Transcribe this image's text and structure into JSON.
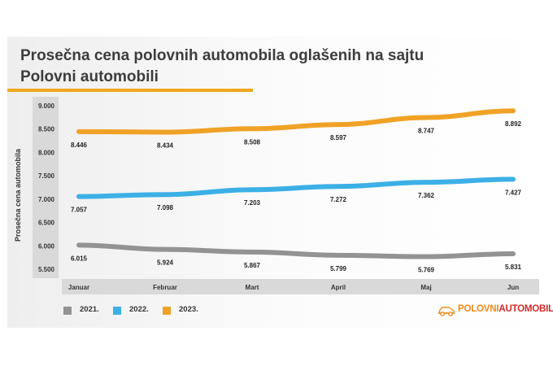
{
  "title": {
    "line1": "Prosečna cena polovnih automobila oglašenih na sajtu",
    "line2": "Polovni automobili"
  },
  "logo": {
    "part1": "POLOVNI",
    "part2": "AUTOMOBILI",
    "icon": "car-icon"
  },
  "chart_data": {
    "type": "line",
    "categories": [
      "Januar",
      "Februar",
      "Mart",
      "April",
      "Maj",
      "Jun"
    ],
    "ylabel": "Prosečna cena automobila",
    "ylim": [
      5500,
      9000
    ],
    "yticks": [
      9000,
      8500,
      8000,
      7500,
      7000,
      6500,
      6000,
      5500
    ],
    "ytick_labels": [
      "9.000",
      "8.500",
      "8.000",
      "7.500",
      "7.000",
      "6.500",
      "6.000",
      "5.500"
    ],
    "grid": false,
    "legend_position": "bottom-left",
    "series": [
      {
        "name": "2021.",
        "color": "#939393",
        "values": [
          6015,
          5924,
          5867,
          5799,
          5769,
          5831
        ],
        "labels": [
          "6.015",
          "5.924",
          "5.867",
          "5.799",
          "5.769",
          "5.831"
        ]
      },
      {
        "name": "2022.",
        "color": "#3cb0e6",
        "values": [
          7057,
          7098,
          7203,
          7272,
          7362,
          7427
        ],
        "labels": [
          "7.057",
          "7.098",
          "7.203",
          "7.272",
          "7.362",
          "7.427"
        ]
      },
      {
        "name": "2023.",
        "color": "#f0a226",
        "values": [
          8446,
          8434,
          8508,
          8597,
          8747,
          8892
        ],
        "labels": [
          "8.446",
          "8.434",
          "8.508",
          "8.597",
          "8.747",
          "8.892"
        ]
      }
    ]
  }
}
